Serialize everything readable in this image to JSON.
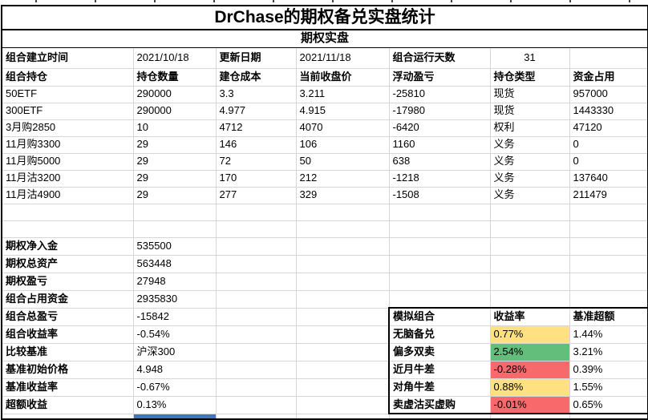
{
  "title": "DrChase的期权备兑实盘统计",
  "subtitle": "期权实盘",
  "meta_row": [
    "组合建立时间",
    "2021/10/18",
    "更新日期",
    "2021/11/18",
    "组合运行天数",
    "31",
    ""
  ],
  "positions": {
    "headers": [
      "组合持仓",
      "持仓数量",
      "建仓成本",
      "当前收盘价",
      "浮动盈亏",
      "持仓类型",
      "资金占用"
    ],
    "rows": [
      [
        "50ETF",
        "290000",
        "3.3",
        "3.211",
        "-25810",
        "现货",
        "957000"
      ],
      [
        "300ETF",
        "290000",
        "4.977",
        "4.915",
        "-17980",
        "现货",
        "1443330"
      ],
      [
        "3月购2850",
        "10",
        "4712",
        "4070",
        "-6420",
        "权利",
        "47120"
      ],
      [
        "11月购3300",
        "29",
        "146",
        "106",
        "1160",
        "义务",
        "0"
      ],
      [
        "11月购5000",
        "29",
        "72",
        "50",
        "638",
        "义务",
        "0"
      ],
      [
        "11月沽3200",
        "29",
        "170",
        "212",
        "-1218",
        "义务",
        "137640"
      ],
      [
        "11月沽4900",
        "29",
        "277",
        "329",
        "-1508",
        "义务",
        "211479"
      ]
    ]
  },
  "summary": {
    "rows": [
      {
        "label": "期权净入金",
        "value": "535500"
      },
      {
        "label": "期权总资产",
        "value": "563448"
      },
      {
        "label": "期权盈亏",
        "value": "27948"
      },
      {
        "label": "组合占用资金",
        "value": "2935830"
      },
      {
        "label": "组合总盈亏",
        "value": "-15842"
      },
      {
        "label": "组合收益率",
        "value": "-0.54%"
      },
      {
        "label": "比较基准",
        "value": "沪深300"
      },
      {
        "label": "基准初始价格",
        "value": "4.948"
      },
      {
        "label": "基准收益率",
        "value": "-0.67%"
      },
      {
        "label": "超额收益",
        "value": "0.13%"
      }
    ]
  },
  "simulation": {
    "headers": [
      "模拟组合",
      "收益率",
      "基准超额"
    ],
    "rows": [
      {
        "name": "无脑备兑",
        "return": "0.77%",
        "excess": "1.44%",
        "fill": "yellow"
      },
      {
        "name": "偏多双卖",
        "return": "2.54%",
        "excess": "3.21%",
        "fill": "green"
      },
      {
        "name": "近月牛差",
        "return": "-0.28%",
        "excess": "0.39%",
        "fill": "red"
      },
      {
        "name": "对角牛差",
        "return": "0.88%",
        "excess": "1.55%",
        "fill": "yellow"
      },
      {
        "name": "卖虚沽买虚购",
        "return": "-0.01%",
        "excess": "0.65%",
        "fill": "red"
      }
    ]
  },
  "colors": {
    "yellow": "#FFE182",
    "green": "#63BE7B",
    "red": "#F8696B",
    "selection_blue": "#4472C4",
    "gridline": "#d6d6d6"
  }
}
